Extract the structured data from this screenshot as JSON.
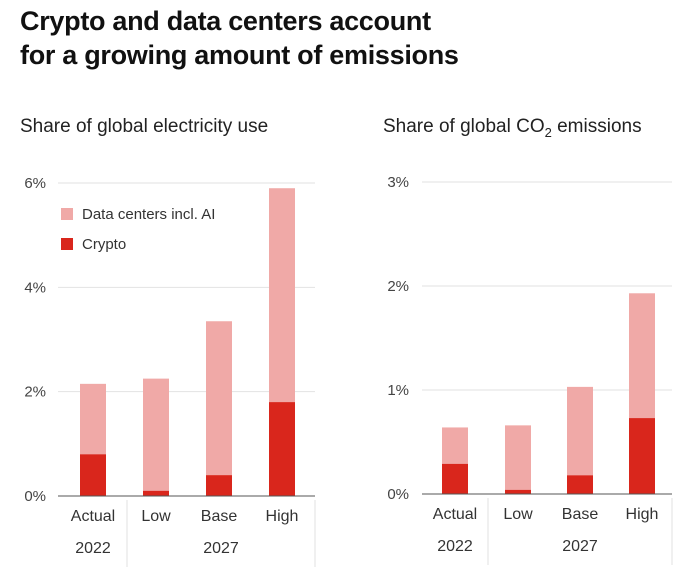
{
  "headline": [
    "Crypto and data centers account",
    "for a growing amount of emissions"
  ],
  "colors": {
    "data_centers": "#f0a9a7",
    "crypto": "#d9261c",
    "grid": "#e2e2e2",
    "axis": "#555555"
  },
  "chart_data": [
    {
      "type": "bar",
      "stacked": true,
      "title": "Share of global electricity use",
      "categories": [
        "Actual",
        "Low",
        "Base",
        "High"
      ],
      "group_labels": [
        "2022",
        "2027"
      ],
      "ylim": [
        0,
        6
      ],
      "yticks": [
        "0%",
        "2%",
        "4%",
        "6%"
      ],
      "series": [
        {
          "name": "Crypto",
          "values": [
            0.8,
            0.1,
            0.4,
            1.8
          ]
        },
        {
          "name": "Data centers incl. AI",
          "values": [
            1.35,
            2.15,
            2.95,
            4.1
          ]
        }
      ],
      "legend": [
        "Data centers incl. AI",
        "Crypto"
      ]
    },
    {
      "type": "bar",
      "stacked": true,
      "title_prefix": "Share of global CO",
      "title_sub": "2",
      "title_suffix": " emissions",
      "categories": [
        "Actual",
        "Low",
        "Base",
        "High"
      ],
      "group_labels": [
        "2022",
        "2027"
      ],
      "ylim": [
        0,
        3
      ],
      "yticks": [
        "0%",
        "1%",
        "2%",
        "3%"
      ],
      "series": [
        {
          "name": "Crypto",
          "values": [
            0.29,
            0.04,
            0.18,
            0.73
          ]
        },
        {
          "name": "Data centers incl. AI",
          "values": [
            0.35,
            0.62,
            0.85,
            1.2
          ]
        }
      ]
    }
  ]
}
